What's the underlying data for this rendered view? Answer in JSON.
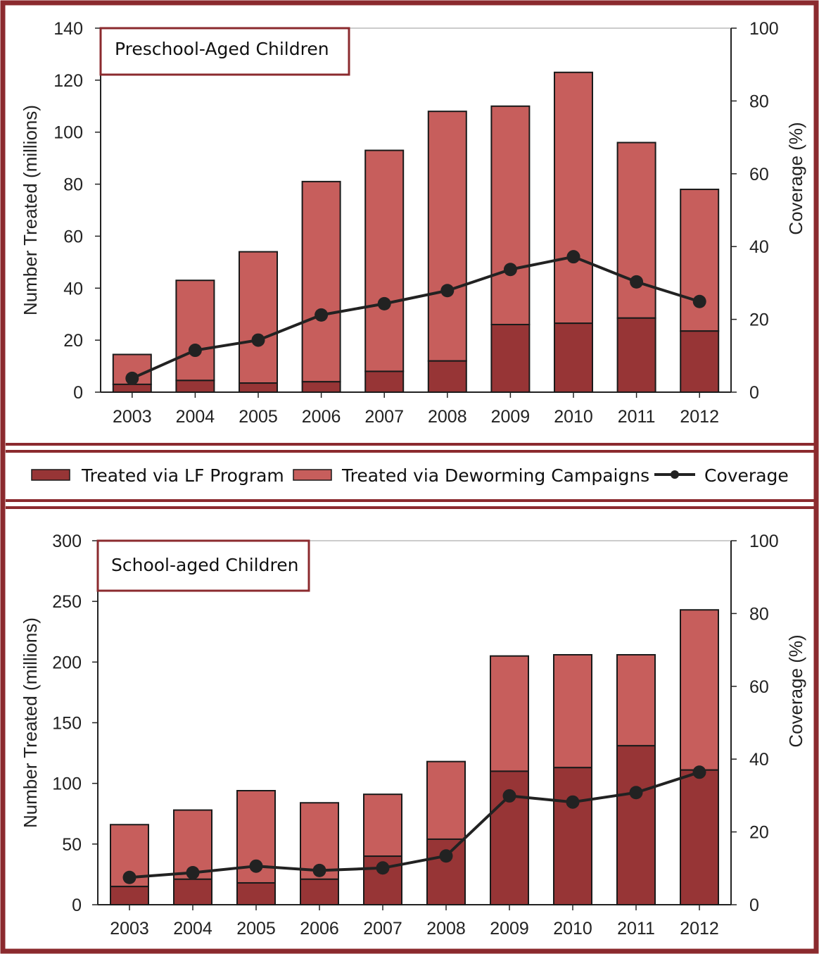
{
  "colors": {
    "frame": "#8b2a2e",
    "lf": "#973536",
    "deworm": "#c75e5c",
    "bar_outline": "#1a1a1a",
    "coverage": "#222222"
  },
  "legend": {
    "lf_label": "Treated via LF Program",
    "deworm_label": "Treated via Deworming Campaigns",
    "coverage_label": "Coverage"
  },
  "chart_data": [
    {
      "type": "bar",
      "stacked": true,
      "title": "Preschool-Aged Children",
      "categories": [
        "2003",
        "2004",
        "2005",
        "2006",
        "2007",
        "2008",
        "2009",
        "2010",
        "2011",
        "2012"
      ],
      "ylabel": "Number Treated (millions)",
      "ylim": [
        0,
        140
      ],
      "yticks": [
        "0",
        "20",
        "40",
        "60",
        "80",
        "100",
        "120",
        "140"
      ],
      "y2label": "Coverage (%)",
      "y2lim": [
        0,
        100
      ],
      "y2ticks": [
        "0",
        "20",
        "40",
        "60",
        "80",
        "100"
      ],
      "series": [
        {
          "name": "Treated via LF Program",
          "values": [
            3,
            4.5,
            3.5,
            4,
            8,
            12,
            26,
            26.5,
            28.5,
            23.5
          ]
        },
        {
          "name": "Treated via Deworming Campaigns",
          "values": [
            11.5,
            38.5,
            50.5,
            77,
            85,
            96,
            84,
            96.5,
            67.5,
            54.5
          ]
        }
      ],
      "line_series": {
        "name": "Coverage",
        "values": [
          3.8,
          11.5,
          14.3,
          21.2,
          24.3,
          27.9,
          33.7,
          37.2,
          30.3,
          24.9
        ]
      }
    },
    {
      "type": "bar",
      "stacked": true,
      "title": "School-aged Children",
      "categories": [
        "2003",
        "2004",
        "2005",
        "2006",
        "2007",
        "2008",
        "2009",
        "2010",
        "2011",
        "2012"
      ],
      "ylabel": "Number Treated (millions)",
      "ylim": [
        0,
        300
      ],
      "yticks": [
        "0",
        "50",
        "100",
        "150",
        "200",
        "250",
        "300"
      ],
      "y2label": "Coverage (%)",
      "y2lim": [
        0,
        100
      ],
      "y2ticks": [
        "0",
        "20",
        "40",
        "60",
        "80",
        "100"
      ],
      "series": [
        {
          "name": "Treated via LF Program",
          "values": [
            15,
            21,
            18,
            21,
            40,
            54,
            110,
            113,
            131,
            111
          ]
        },
        {
          "name": "Treated via Deworming Campaigns",
          "values": [
            51,
            57,
            76,
            63,
            51,
            64,
            95,
            93,
            75,
            132
          ]
        }
      ],
      "line_series": {
        "name": "Coverage",
        "values": [
          7.5,
          8.8,
          10.6,
          9.4,
          10.1,
          13.4,
          29.9,
          28.2,
          30.8,
          36.4
        ]
      }
    }
  ]
}
